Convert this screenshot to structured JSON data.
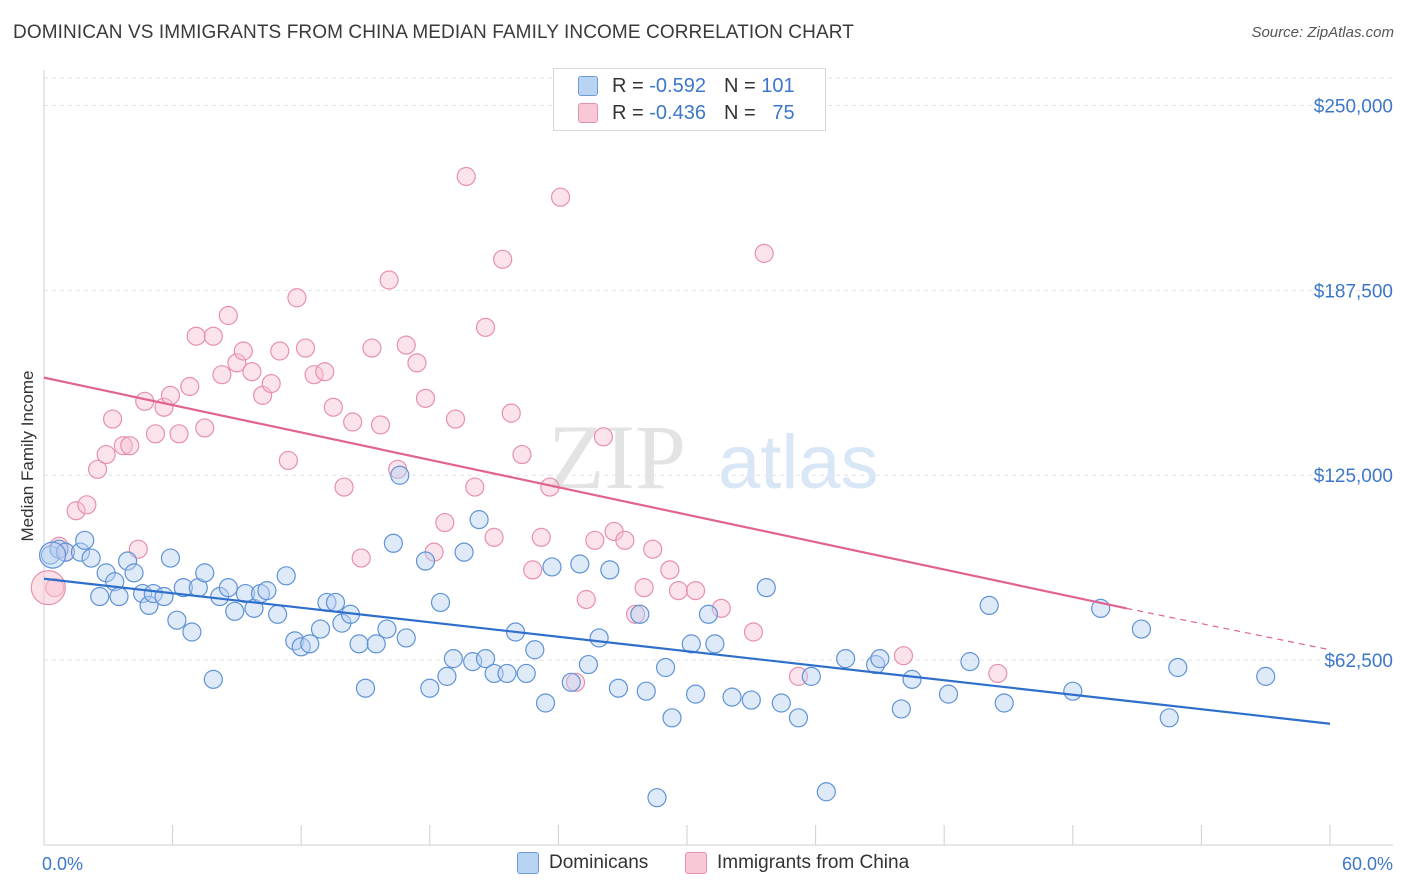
{
  "title": "DOMINICAN VS IMMIGRANTS FROM CHINA MEDIAN FAMILY INCOME CORRELATION CHART",
  "source": "Source: ZipAtlas.com",
  "watermark": {
    "zip": "ZIP",
    "atlas": "atlas"
  },
  "colors": {
    "blue": "#3d77c9",
    "blue_fill": "#a8c8f0",
    "pink": "#e0648f",
    "pink_fill": "#f4b8cb",
    "tick_label": "#3d77c9"
  },
  "legend": {
    "rows": [
      {
        "r_label": "R =",
        "r_value": "-0.592",
        "n_label": "N =",
        "n_value": "101"
      },
      {
        "r_label": "R =",
        "r_value": "-0.436",
        "n_label": "N =",
        "n_value": "75"
      }
    ]
  },
  "bottom_legend": {
    "series1": "Dominicans",
    "series2": "Immigrants from China"
  },
  "chart_data": {
    "type": "scatter",
    "title": "DOMINICAN VS IMMIGRANTS FROM CHINA MEDIAN FAMILY INCOME CORRELATION CHART",
    "xlabel": "",
    "ylabel": "Median Family Income",
    "xlim": [
      0,
      60
    ],
    "ylim": [
      0,
      262000
    ],
    "x_tick_labels": [
      "0.0%",
      "60.0%"
    ],
    "y_ticks": [
      62500,
      125000,
      187500,
      250000
    ],
    "y_tick_labels": [
      "$62,500",
      "$125,000",
      "$187,500",
      "$250,000"
    ],
    "grid": true,
    "legend_position": "top-center",
    "series": [
      {
        "name": "Dominicans",
        "color": "#3d77c9",
        "trend": {
          "x": [
            0,
            60
          ],
          "y": [
            90000,
            41000
          ]
        },
        "points": [
          [
            0.3,
            98000
          ],
          [
            0.7,
            100000
          ],
          [
            1.0,
            99000
          ],
          [
            1.7,
            99000
          ],
          [
            1.9,
            103000
          ],
          [
            2.2,
            97000
          ],
          [
            2.6,
            84000
          ],
          [
            2.9,
            92000
          ],
          [
            3.3,
            89000
          ],
          [
            3.5,
            84000
          ],
          [
            3.9,
            96000
          ],
          [
            4.2,
            92000
          ],
          [
            4.6,
            85000
          ],
          [
            4.9,
            81000
          ],
          [
            5.1,
            85000
          ],
          [
            5.6,
            84000
          ],
          [
            5.9,
            97000
          ],
          [
            6.2,
            76000
          ],
          [
            6.5,
            87000
          ],
          [
            6.9,
            72000
          ],
          [
            7.2,
            87000
          ],
          [
            7.5,
            92000
          ],
          [
            7.9,
            56000
          ],
          [
            8.2,
            84000
          ],
          [
            8.6,
            87000
          ],
          [
            8.9,
            79000
          ],
          [
            9.4,
            85000
          ],
          [
            9.8,
            80000
          ],
          [
            10.1,
            85000
          ],
          [
            10.4,
            86000
          ],
          [
            10.9,
            78000
          ],
          [
            11.3,
            91000
          ],
          [
            11.7,
            69000
          ],
          [
            12.0,
            67000
          ],
          [
            12.4,
            68000
          ],
          [
            12.9,
            73000
          ],
          [
            13.2,
            82000
          ],
          [
            13.6,
            82000
          ],
          [
            13.9,
            75000
          ],
          [
            14.3,
            78000
          ],
          [
            14.7,
            68000
          ],
          [
            15.0,
            53000
          ],
          [
            15.5,
            68000
          ],
          [
            16.0,
            73000
          ],
          [
            16.3,
            102000
          ],
          [
            16.6,
            125000
          ],
          [
            16.9,
            70000
          ],
          [
            17.8,
            96000
          ],
          [
            18.0,
            53000
          ],
          [
            18.5,
            82000
          ],
          [
            18.8,
            57000
          ],
          [
            19.1,
            63000
          ],
          [
            19.6,
            99000
          ],
          [
            20.0,
            62000
          ],
          [
            20.3,
            110000
          ],
          [
            20.6,
            63000
          ],
          [
            21.0,
            58000
          ],
          [
            21.6,
            58000
          ],
          [
            22.0,
            72000
          ],
          [
            22.5,
            58000
          ],
          [
            22.9,
            66000
          ],
          [
            23.4,
            48000
          ],
          [
            23.7,
            94000
          ],
          [
            24.6,
            55000
          ],
          [
            25.0,
            95000
          ],
          [
            25.4,
            61000
          ],
          [
            25.9,
            70000
          ],
          [
            26.4,
            93000
          ],
          [
            26.8,
            53000
          ],
          [
            27.8,
            78000
          ],
          [
            28.1,
            52000
          ],
          [
            28.6,
            16000
          ],
          [
            29.0,
            60000
          ],
          [
            29.3,
            43000
          ],
          [
            30.2,
            68000
          ],
          [
            30.4,
            51000
          ],
          [
            31.0,
            78000
          ],
          [
            31.3,
            68000
          ],
          [
            32.1,
            50000
          ],
          [
            33.0,
            49000
          ],
          [
            33.7,
            87000
          ],
          [
            34.4,
            48000
          ],
          [
            35.2,
            43000
          ],
          [
            35.8,
            57000
          ],
          [
            37.4,
            63000
          ],
          [
            38.8,
            61000
          ],
          [
            39.0,
            63000
          ],
          [
            40.0,
            46000
          ],
          [
            40.5,
            56000
          ],
          [
            42.2,
            51000
          ],
          [
            43.2,
            62000
          ],
          [
            44.1,
            81000
          ],
          [
            44.8,
            48000
          ],
          [
            48.0,
            52000
          ],
          [
            49.3,
            80000
          ],
          [
            51.2,
            73000
          ],
          [
            52.5,
            43000
          ],
          [
            52.9,
            60000
          ],
          [
            57.0,
            57000
          ],
          [
            36.5,
            18000
          ]
        ]
      },
      {
        "name": "Immigrants from China",
        "color": "#e0648f",
        "trend": {
          "x": [
            0,
            50.5
          ],
          "y": [
            158000,
            80000
          ],
          "dash_x": [
            50.5,
            60
          ],
          "dash_y": [
            80000,
            66000
          ]
        },
        "points": [
          [
            0.5,
            87000
          ],
          [
            0.7,
            101000
          ],
          [
            1.0,
            99000
          ],
          [
            1.5,
            113000
          ],
          [
            2.0,
            115000
          ],
          [
            2.5,
            127000
          ],
          [
            2.9,
            132000
          ],
          [
            3.2,
            144000
          ],
          [
            3.7,
            135000
          ],
          [
            4.0,
            135000
          ],
          [
            4.4,
            100000
          ],
          [
            4.7,
            150000
          ],
          [
            5.2,
            139000
          ],
          [
            5.6,
            148000
          ],
          [
            5.9,
            152000
          ],
          [
            6.3,
            139000
          ],
          [
            6.8,
            155000
          ],
          [
            7.1,
            172000
          ],
          [
            7.5,
            141000
          ],
          [
            7.9,
            172000
          ],
          [
            8.3,
            159000
          ],
          [
            8.6,
            179000
          ],
          [
            9.0,
            163000
          ],
          [
            9.3,
            167000
          ],
          [
            9.7,
            160000
          ],
          [
            10.2,
            152000
          ],
          [
            10.6,
            156000
          ],
          [
            11.0,
            167000
          ],
          [
            11.4,
            130000
          ],
          [
            11.8,
            185000
          ],
          [
            12.2,
            168000
          ],
          [
            12.6,
            159000
          ],
          [
            13.1,
            160000
          ],
          [
            13.5,
            148000
          ],
          [
            14.0,
            121000
          ],
          [
            14.4,
            143000
          ],
          [
            14.8,
            97000
          ],
          [
            15.3,
            168000
          ],
          [
            15.7,
            142000
          ],
          [
            16.1,
            191000
          ],
          [
            16.5,
            127000
          ],
          [
            16.9,
            169000
          ],
          [
            17.4,
            163000
          ],
          [
            17.8,
            151000
          ],
          [
            18.2,
            99000
          ],
          [
            18.7,
            109000
          ],
          [
            19.2,
            144000
          ],
          [
            19.7,
            226000
          ],
          [
            20.1,
            121000
          ],
          [
            20.6,
            175000
          ],
          [
            21.0,
            104000
          ],
          [
            21.4,
            198000
          ],
          [
            21.8,
            146000
          ],
          [
            22.3,
            132000
          ],
          [
            22.8,
            93000
          ],
          [
            23.2,
            104000
          ],
          [
            23.6,
            121000
          ],
          [
            24.1,
            219000
          ],
          [
            24.8,
            55000
          ],
          [
            25.3,
            83000
          ],
          [
            25.7,
            103000
          ],
          [
            26.1,
            138000
          ],
          [
            26.6,
            106000
          ],
          [
            27.1,
            103000
          ],
          [
            27.6,
            78000
          ],
          [
            28.0,
            87000
          ],
          [
            28.4,
            100000
          ],
          [
            29.2,
            93000
          ],
          [
            29.6,
            86000
          ],
          [
            30.4,
            86000
          ],
          [
            31.6,
            80000
          ],
          [
            33.1,
            72000
          ],
          [
            33.6,
            200000
          ],
          [
            35.2,
            57000
          ],
          [
            40.1,
            64000
          ],
          [
            44.5,
            58000
          ]
        ]
      }
    ]
  }
}
